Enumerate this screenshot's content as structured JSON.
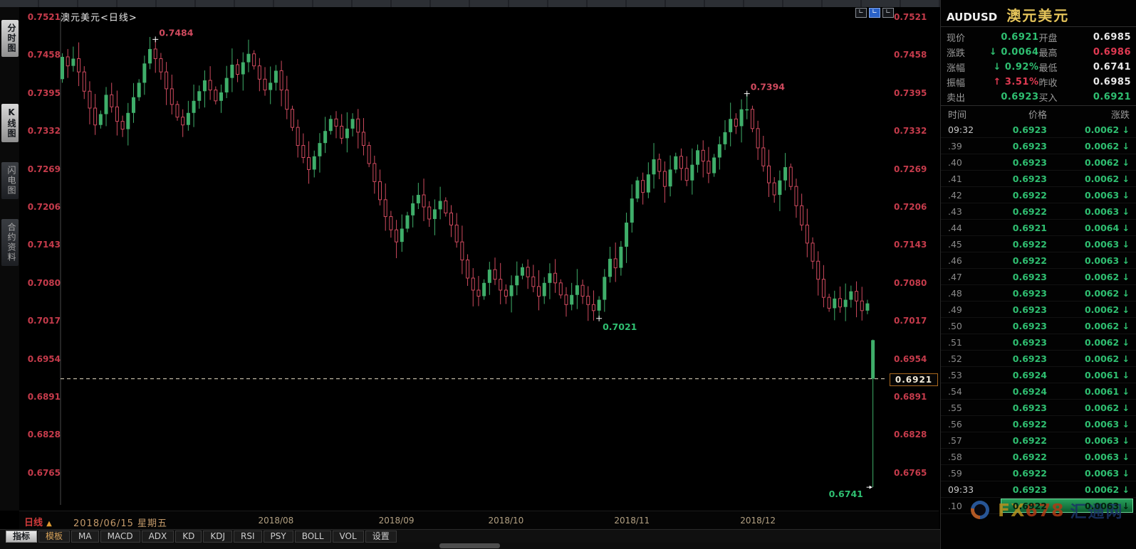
{
  "sidebar": {
    "items": [
      {
        "label": "分时图",
        "selected": true
      },
      {
        "label": "K线图",
        "selected": true
      },
      {
        "label": "闪电图",
        "selected": false
      },
      {
        "label": "合约资料",
        "selected": false
      }
    ]
  },
  "chart": {
    "title": "澳元美元<日线>",
    "price_box_label": "0.6921"
  },
  "chart_data": {
    "type": "candlestick",
    "symbol": "AUDUSD",
    "title": "澳元美元<日线>",
    "timeframe": "日线",
    "y_ticks": [
      0.7521,
      0.7458,
      0.7395,
      0.7332,
      0.7269,
      0.7206,
      0.7143,
      0.708,
      0.7017,
      0.6954,
      0.6891,
      0.6828,
      0.6765
    ],
    "x_ticks": [
      {
        "label": "2018/08",
        "index": 39
      },
      {
        "label": "2018/09",
        "index": 61
      },
      {
        "label": "2018/10",
        "index": 81
      },
      {
        "label": "2018/11",
        "index": 104
      },
      {
        "label": "2018/12",
        "index": 127
      }
    ],
    "first_open": 0.7418,
    "closes": [
      0.7455,
      0.744,
      0.7452,
      0.743,
      0.7398,
      0.737,
      0.7342,
      0.736,
      0.7392,
      0.7372,
      0.7348,
      0.7335,
      0.7362,
      0.7388,
      0.7412,
      0.7444,
      0.7468,
      0.7452,
      0.743,
      0.7402,
      0.7376,
      0.7355,
      0.7342,
      0.7362,
      0.7382,
      0.7398,
      0.7416,
      0.74,
      0.7382,
      0.7396,
      0.742,
      0.7442,
      0.7426,
      0.7446,
      0.746,
      0.744,
      0.7418,
      0.74,
      0.7412,
      0.7432,
      0.74,
      0.7368,
      0.7338,
      0.7308,
      0.7288,
      0.7268,
      0.729,
      0.7312,
      0.7332,
      0.7352,
      0.734,
      0.732,
      0.7336,
      0.7352,
      0.733,
      0.7308,
      0.7278,
      0.7248,
      0.7218,
      0.719,
      0.7168,
      0.7148,
      0.717,
      0.7192,
      0.7212,
      0.7226,
      0.7206,
      0.7186,
      0.7202,
      0.7216,
      0.7196,
      0.7176,
      0.7148,
      0.7118,
      0.7088,
      0.7068,
      0.7058,
      0.708,
      0.7102,
      0.7086,
      0.7068,
      0.7058,
      0.7076,
      0.7092,
      0.7106,
      0.709,
      0.7074,
      0.7058,
      0.708,
      0.7096,
      0.708,
      0.706,
      0.7044,
      0.706,
      0.7076,
      0.7058,
      0.7044,
      0.7034,
      0.7052,
      0.709,
      0.712,
      0.7105,
      0.714,
      0.718,
      0.722,
      0.725,
      0.723,
      0.726,
      0.7285,
      0.7265,
      0.724,
      0.7268,
      0.729,
      0.727,
      0.725,
      0.7276,
      0.73,
      0.7282,
      0.7262,
      0.7288,
      0.731,
      0.733,
      0.7352,
      0.734,
      0.7368,
      0.7368,
      0.7336,
      0.7304,
      0.7274,
      0.7246,
      0.7226,
      0.725,
      0.7272,
      0.724,
      0.7208,
      0.7176,
      0.7146,
      0.7116,
      0.7086,
      0.7056,
      0.7038,
      0.7054,
      0.704,
      0.7052,
      0.7066,
      0.705,
      0.7034,
      0.7046
    ],
    "wick_overrides": {
      "17": {
        "high": 0.7484
      },
      "98": {
        "low": 0.7021
      },
      "125": {
        "high": 0.7394
      }
    },
    "last_candle": {
      "open": 0.6985,
      "high": 0.6986,
      "low": 0.6741,
      "close": 0.6921,
      "render_color": "green"
    },
    "current_price": 0.6921,
    "annotations": [
      {
        "text": "0.7484",
        "price": 0.7484,
        "index": 17,
        "placement": "above",
        "color": "#cf4a5e"
      },
      {
        "text": "0.7021",
        "price": 0.7021,
        "index": 98,
        "placement": "below",
        "color": "#2fbf71"
      },
      {
        "text": "0.7394",
        "price": 0.7394,
        "index": 125,
        "placement": "above",
        "color": "#cf4a5e"
      },
      {
        "text": "0.6741",
        "price": 0.6741,
        "index": 148,
        "placement": "below-left",
        "color": "#2fbf71"
      }
    ],
    "legend_position": "none",
    "grid": false
  },
  "bottom_bar": {
    "timeframe": "日线",
    "timeframe_arrow": "▲",
    "date": "2018/06/15 星期五",
    "tabs": [
      {
        "label": "指标",
        "selected": true
      },
      {
        "label": "模板",
        "accent": true
      },
      {
        "label": "MA"
      },
      {
        "label": "MACD"
      },
      {
        "label": "ADX"
      },
      {
        "label": "KD"
      },
      {
        "label": "KDJ"
      },
      {
        "label": "RSI"
      },
      {
        "label": "PSY"
      },
      {
        "label": "BOLL"
      },
      {
        "label": "VOL"
      },
      {
        "label": "设置"
      }
    ]
  },
  "quote_panel": {
    "symbol": "AUDUSD",
    "name": "澳元美元",
    "fields": [
      {
        "label": "现价",
        "value": "0.6921",
        "color": "green"
      },
      {
        "label": "开盘",
        "value": "0.6985",
        "color": "white"
      },
      {
        "label": "涨跌",
        "value": "0.0064",
        "arrow": "down",
        "color": "green"
      },
      {
        "label": "最高",
        "value": "0.6986",
        "color": "red"
      },
      {
        "label": "涨幅",
        "value": "0.92%",
        "arrow": "down",
        "color": "green"
      },
      {
        "label": "最低",
        "value": "0.6741",
        "color": "white"
      },
      {
        "label": "振幅",
        "value": "3.51%",
        "arrow": "up",
        "color": "red"
      },
      {
        "label": "昨收",
        "value": "0.6985",
        "color": "white"
      },
      {
        "label": "卖出",
        "value": "0.6923",
        "color": "green"
      },
      {
        "label": "买入",
        "value": "0.6921",
        "color": "green"
      }
    ],
    "table": {
      "headers": [
        "时间",
        "价格",
        "涨跌"
      ],
      "rows": [
        {
          "time": "09:32",
          "price": "0.6923",
          "change": "0.0062"
        },
        {
          "time": ".39",
          "price": "0.6923",
          "change": "0.0062"
        },
        {
          "time": ".40",
          "price": "0.6923",
          "change": "0.0062"
        },
        {
          "time": ".41",
          "price": "0.6923",
          "change": "0.0062"
        },
        {
          "time": ".42",
          "price": "0.6922",
          "change": "0.0063"
        },
        {
          "time": ".43",
          "price": "0.6922",
          "change": "0.0063"
        },
        {
          "time": ".44",
          "price": "0.6921",
          "change": "0.0064"
        },
        {
          "time": ".45",
          "price": "0.6922",
          "change": "0.0063"
        },
        {
          "time": ".46",
          "price": "0.6922",
          "change": "0.0063"
        },
        {
          "time": ".47",
          "price": "0.6923",
          "change": "0.0062"
        },
        {
          "time": ".48",
          "price": "0.6923",
          "change": "0.0062"
        },
        {
          "time": ".49",
          "price": "0.6923",
          "change": "0.0062"
        },
        {
          "time": ".50",
          "price": "0.6923",
          "change": "0.0062"
        },
        {
          "time": ".51",
          "price": "0.6923",
          "change": "0.0062"
        },
        {
          "time": ".52",
          "price": "0.6923",
          "change": "0.0062"
        },
        {
          "time": ".53",
          "price": "0.6924",
          "change": "0.0061"
        },
        {
          "time": ".54",
          "price": "0.6924",
          "change": "0.0061"
        },
        {
          "time": ".55",
          "price": "0.6923",
          "change": "0.0062"
        },
        {
          "time": ".56",
          "price": "0.6922",
          "change": "0.0063"
        },
        {
          "time": ".57",
          "price": "0.6922",
          "change": "0.0063"
        },
        {
          "time": ".58",
          "price": "0.6922",
          "change": "0.0063"
        },
        {
          "time": ".59",
          "price": "0.6922",
          "change": "0.0063"
        },
        {
          "time": "09:33",
          "price": "0.6923",
          "change": "0.0062"
        },
        {
          "time": ".10",
          "price": "0.6922",
          "change": "0.0063",
          "highlight": true
        }
      ]
    }
  },
  "logo": {
    "fx": "FX",
    "num": "678",
    "cn": "汇通网"
  },
  "colors": {
    "candle_green": "#3fae6a",
    "candle_red": "#cf4a5e",
    "axis_label_red": "#c53b4b",
    "value_green": "#2fbf71",
    "value_red": "#e03a52",
    "gold": "#e5c45a",
    "dashed_line": "#e6ddc4"
  }
}
